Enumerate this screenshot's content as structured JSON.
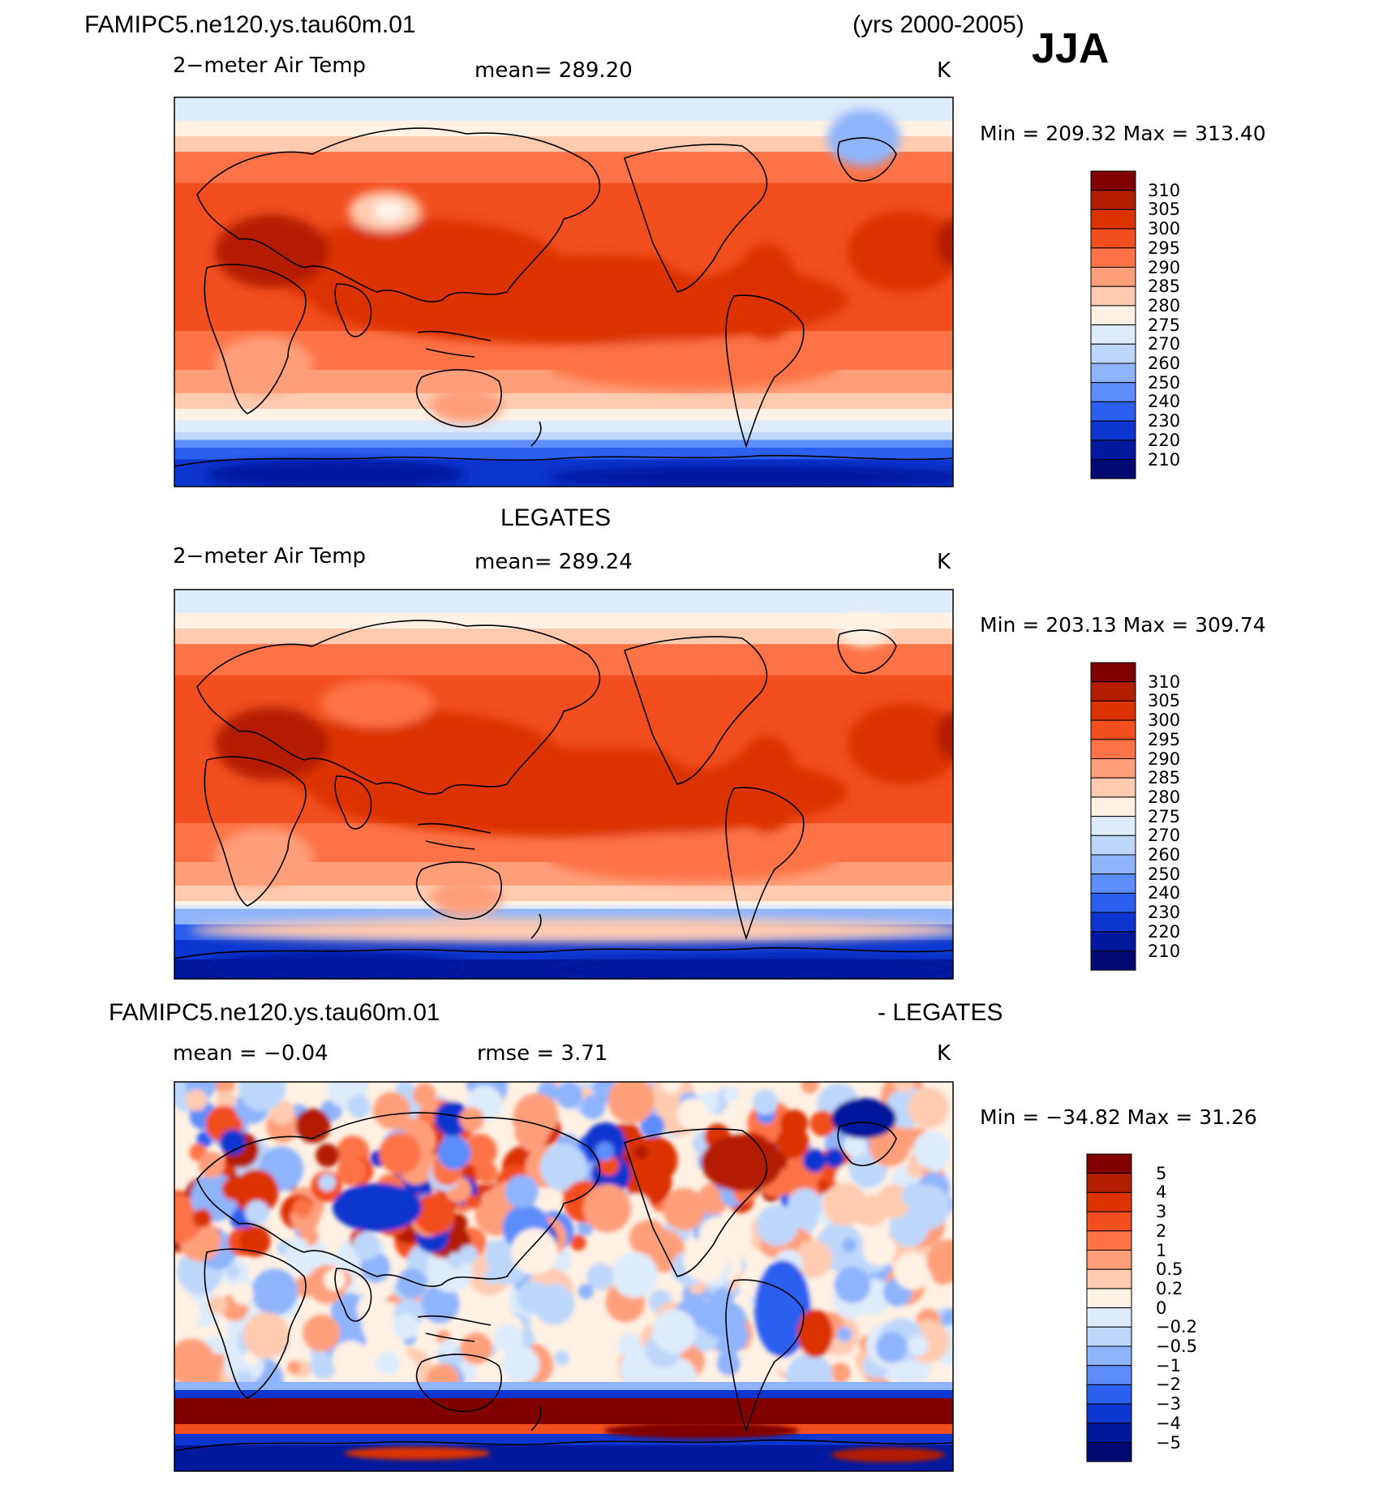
{
  "header": {
    "case_name": "FAMIPC5.ne120.ys.tau60m.01",
    "years": "(yrs 2000-2005)",
    "season": "JJA"
  },
  "panels": [
    {
      "id": "model",
      "title": "",
      "variable": "2−meter Air Temp",
      "stat_text": "mean=  289.20",
      "units": "K",
      "minmax_text": "Min  =  209.32  Max  =  313.40",
      "colorbar_labels": [
        "310",
        "305",
        "300",
        "295",
        "290",
        "285",
        "280",
        "275",
        "270",
        "260",
        "250",
        "240",
        "230",
        "220",
        "210"
      ]
    },
    {
      "id": "obs",
      "title": "LEGATES",
      "variable": "2−meter Air Temp",
      "stat_text": "mean=  289.24",
      "units": "K",
      "minmax_text": "Min  =  203.13  Max  =  309.74",
      "colorbar_labels": [
        "310",
        "305",
        "300",
        "295",
        "290",
        "285",
        "280",
        "275",
        "270",
        "260",
        "250",
        "240",
        "230",
        "220",
        "210"
      ]
    },
    {
      "id": "diff",
      "title": "FAMIPC5.ne120.ys.tau60m.01",
      "title_right": "- LEGATES",
      "variable": "mean  =    −0.04",
      "stat_text": "rmse  =      3.71",
      "units": "K",
      "minmax_text": "Min  =  −34.82  Max  =    31.26",
      "colorbar_labels": [
        "5",
        "4",
        "3",
        "2",
        "1",
        "0.5",
        "0.2",
        "0",
        "−0.2",
        "−0.5",
        "−1",
        "−2",
        "−3",
        "−4",
        "−5"
      ]
    }
  ],
  "colors": {
    "temp_scale": [
      "#800000",
      "#b31d00",
      "#dc3300",
      "#f24e1f",
      "#fd7347",
      "#ff9f7a",
      "#ffcbb0",
      "#fff1e3",
      "#deebfa",
      "#bdd7fb",
      "#8fb4fc",
      "#5d8cfb",
      "#2b5ff0",
      "#0c36cf",
      "#03199d",
      "#000a70"
    ],
    "diff_scale": [
      "#800000",
      "#b31d00",
      "#dc3300",
      "#f24e1f",
      "#fd7347",
      "#ff9f7a",
      "#ffcbb0",
      "#fff1e3",
      "#deebfa",
      "#bdd7fb",
      "#8fb4fc",
      "#5d8cfb",
      "#2b5ff0",
      "#0c36cf",
      "#03199d",
      "#000a70"
    ],
    "coastline": "#000000"
  }
}
